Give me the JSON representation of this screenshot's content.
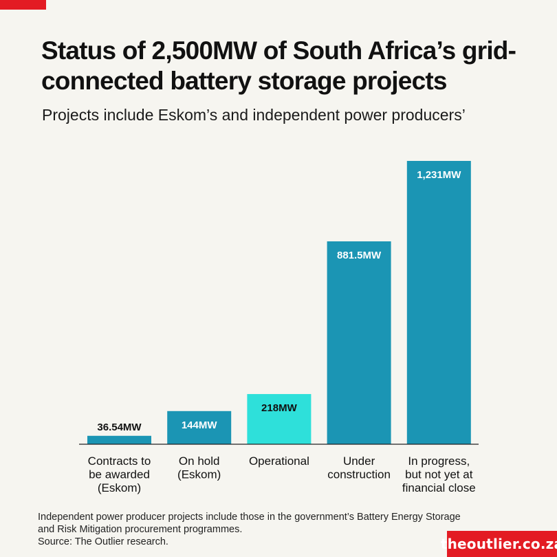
{
  "header": {
    "title": "Status of 2,500MW of South Africa’s grid-connected battery storage projects",
    "subtitle": "Projects include Eskom’s and independent power producers’"
  },
  "footer": {
    "note_line1": "Independent power producer projects include those in the government’s Battery Energy Storage",
    "note_line2": "and Risk Mitigation procurement programmes.",
    "source": "Source: The Outlier research.",
    "brand": "theoutlier.co.za"
  },
  "colors": {
    "accent": "#e31b23",
    "bar_default": "#1b95b4",
    "bar_highlight": "#2ee0da",
    "background": "#f6f5f0"
  },
  "chart_data": {
    "type": "bar",
    "title": "Status of 2,500MW of South Africa’s grid-connected battery storage projects",
    "subtitle": "Projects include Eskom’s and independent power producers’",
    "xlabel": "",
    "ylabel": "",
    "grid": false,
    "categories": [
      [
        "Contracts to",
        "be awarded",
        "(Eskom)"
      ],
      [
        "On hold",
        "(Eskom)"
      ],
      [
        "Operational"
      ],
      [
        "Under",
        "construction"
      ],
      [
        "In progress,",
        "but not yet at",
        "financial close"
      ]
    ],
    "values": [
      36.54,
      144,
      218,
      881.5,
      1231
    ],
    "data_labels": [
      "36.54MW",
      "144MW",
      "218MW",
      "881.5MW",
      "1,231MW"
    ],
    "highlight_index": 2,
    "ylim": [
      0,
      1231
    ]
  }
}
